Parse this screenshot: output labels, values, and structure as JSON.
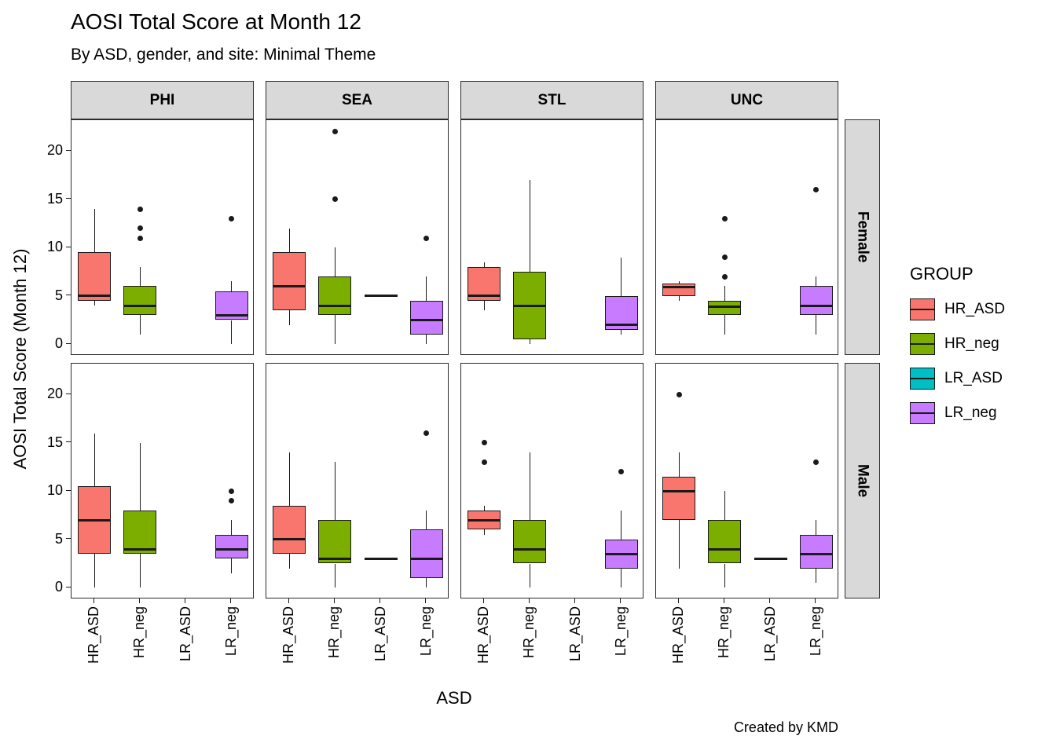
{
  "chart_data": {
    "type": "boxplot",
    "title": "AOSI Total Score at Month 12",
    "subtitle": "By ASD, gender, and site: Minimal Theme",
    "caption": "Created by KMD",
    "xlabel": "ASD",
    "ylabel": "AOSI Total Score (Month 12)",
    "y_ticks": [
      0,
      5,
      10,
      15,
      20
    ],
    "y_domain": [
      -1.2,
      23.2
    ],
    "facet_cols": [
      "PHI",
      "SEA",
      "STL",
      "UNC"
    ],
    "facet_rows": [
      "Female",
      "Male"
    ],
    "groups": [
      "HR_ASD",
      "HR_neg",
      "LR_ASD",
      "LR_neg"
    ],
    "colors": {
      "HR_ASD": "#F8766D",
      "HR_neg": "#7CAE00",
      "LR_ASD": "#00BFC4",
      "LR_neg": "#C77CFF"
    },
    "legend": {
      "title": "GROUP",
      "entries": [
        {
          "label": "HR_ASD",
          "color": "#F8766D"
        },
        {
          "label": "HR_neg",
          "color": "#7CAE00"
        },
        {
          "label": "LR_ASD",
          "color": "#00BFC4"
        },
        {
          "label": "LR_neg",
          "color": "#C77CFF"
        }
      ]
    },
    "panels": [
      {
        "col": "PHI",
        "row": "Female",
        "boxes": [
          {
            "group": "HR_ASD",
            "low": 4,
            "q1": 4.5,
            "med": 5,
            "q3": 9.5,
            "high": 14,
            "outliers": []
          },
          {
            "group": "HR_neg",
            "low": 1,
            "q1": 3,
            "med": 4,
            "q3": 6,
            "high": 8,
            "outliers": [
              11,
              12,
              14
            ]
          },
          {
            "group": "LR_neg",
            "low": 0,
            "q1": 2.5,
            "med": 3,
            "q3": 5.5,
            "high": 6.5,
            "outliers": [
              13
            ]
          }
        ]
      },
      {
        "col": "SEA",
        "row": "Female",
        "boxes": [
          {
            "group": "HR_ASD",
            "low": 2,
            "q1": 3.5,
            "med": 6,
            "q3": 9.5,
            "high": 12,
            "outliers": []
          },
          {
            "group": "HR_neg",
            "low": 0,
            "q1": 3,
            "med": 4,
            "q3": 7,
            "high": 10,
            "outliers": [
              15,
              22
            ]
          },
          {
            "group": "LR_ASD",
            "value": 5
          },
          {
            "group": "LR_neg",
            "low": 0,
            "q1": 1,
            "med": 2.5,
            "q3": 4.5,
            "high": 7,
            "outliers": [
              11
            ]
          }
        ]
      },
      {
        "col": "STL",
        "row": "Female",
        "boxes": [
          {
            "group": "HR_ASD",
            "low": 3.5,
            "q1": 4.5,
            "med": 5,
            "q3": 8,
            "high": 8.5,
            "outliers": []
          },
          {
            "group": "HR_neg",
            "low": 0,
            "q1": 0.5,
            "med": 4,
            "q3": 7.5,
            "high": 17,
            "outliers": []
          },
          {
            "group": "LR_neg",
            "low": 1,
            "q1": 1.5,
            "med": 2,
            "q3": 5,
            "high": 9,
            "outliers": []
          }
        ]
      },
      {
        "col": "UNC",
        "row": "Female",
        "boxes": [
          {
            "group": "HR_ASD",
            "low": 4.5,
            "q1": 5,
            "med": 5.9,
            "q3": 6.3,
            "high": 6.5,
            "outliers": []
          },
          {
            "group": "HR_neg",
            "low": 1,
            "q1": 3,
            "med": 3.9,
            "q3": 4.5,
            "high": 6,
            "outliers": [
              7,
              9,
              13
            ]
          },
          {
            "group": "LR_neg",
            "low": 1,
            "q1": 3,
            "med": 4,
            "q3": 6,
            "high": 7,
            "outliers": [
              16
            ]
          }
        ]
      },
      {
        "col": "PHI",
        "row": "Male",
        "boxes": [
          {
            "group": "HR_ASD",
            "low": 0,
            "q1": 3.5,
            "med": 7,
            "q3": 10.5,
            "high": 16,
            "outliers": []
          },
          {
            "group": "HR_neg",
            "low": 0,
            "q1": 3.5,
            "med": 4,
            "q3": 8,
            "high": 15,
            "outliers": []
          },
          {
            "group": "LR_neg",
            "low": 1.5,
            "q1": 3,
            "med": 4,
            "q3": 5.5,
            "high": 7,
            "outliers": [
              9,
              10
            ]
          }
        ]
      },
      {
        "col": "SEA",
        "row": "Male",
        "boxes": [
          {
            "group": "HR_ASD",
            "low": 2,
            "q1": 3.5,
            "med": 5,
            "q3": 8.5,
            "high": 14,
            "outliers": []
          },
          {
            "group": "HR_neg",
            "low": 0,
            "q1": 2.5,
            "med": 3,
            "q3": 7,
            "high": 13,
            "outliers": []
          },
          {
            "group": "LR_ASD",
            "value": 3
          },
          {
            "group": "LR_neg",
            "low": 0,
            "q1": 1,
            "med": 3,
            "q3": 6,
            "high": 8,
            "outliers": [
              16
            ]
          }
        ]
      },
      {
        "col": "STL",
        "row": "Male",
        "boxes": [
          {
            "group": "HR_ASD",
            "low": 5.5,
            "q1": 6,
            "med": 7,
            "q3": 8,
            "high": 8.5,
            "outliers": [
              13,
              15
            ]
          },
          {
            "group": "HR_neg",
            "low": 0,
            "q1": 2.5,
            "med": 4,
            "q3": 7,
            "high": 14,
            "outliers": []
          },
          {
            "group": "LR_neg",
            "low": 0,
            "q1": 2,
            "med": 3.5,
            "q3": 5,
            "high": 8,
            "outliers": [
              12
            ]
          }
        ]
      },
      {
        "col": "UNC",
        "row": "Male",
        "boxes": [
          {
            "group": "HR_ASD",
            "low": 2,
            "q1": 7,
            "med": 10,
            "q3": 11.5,
            "high": 14,
            "outliers": [
              20
            ]
          },
          {
            "group": "HR_neg",
            "low": 0,
            "q1": 2.5,
            "med": 4,
            "q3": 7,
            "high": 10,
            "outliers": []
          },
          {
            "group": "LR_ASD",
            "value": 3
          },
          {
            "group": "LR_neg",
            "low": 0.5,
            "q1": 2,
            "med": 3.5,
            "q3": 5.5,
            "high": 7,
            "outliers": [
              13
            ]
          }
        ]
      }
    ]
  }
}
